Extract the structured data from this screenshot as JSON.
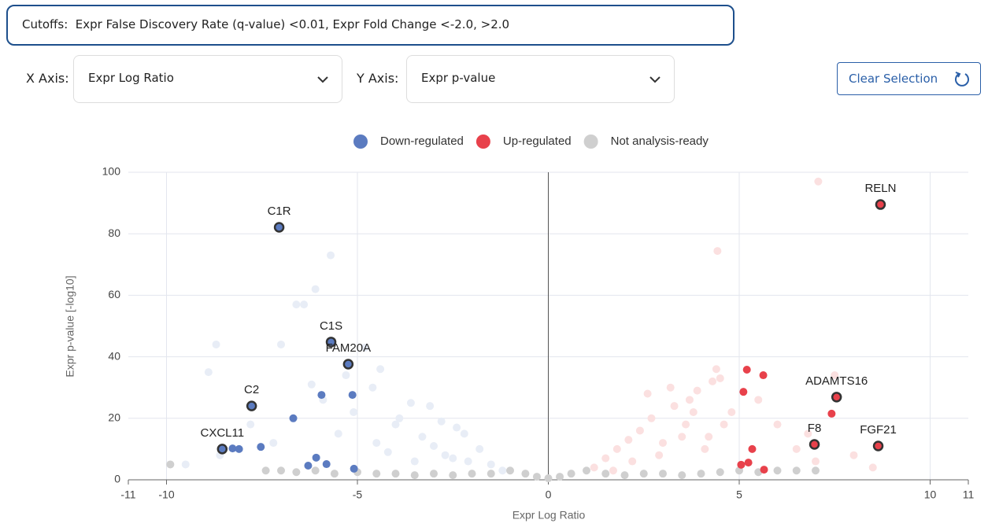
{
  "cutoffs": {
    "label": "Cutoffs:",
    "text": "Expr False Discovery Rate (q-value) <0.01, Expr Fold Change <-2.0, >2.0"
  },
  "controls": {
    "x_axis_label": "X Axis:",
    "x_axis_value": "Expr Log Ratio",
    "y_axis_label": "Y Axis:",
    "y_axis_value": "Expr p-value",
    "clear_button": "Clear Selection"
  },
  "chart_data": {
    "type": "scatter",
    "xlabel": "Expr Log Ratio",
    "ylabel": "Expr p-value [-log10]",
    "xlim": [
      -11,
      11
    ],
    "xticks": [
      -11,
      -10,
      -5,
      0,
      5,
      10,
      11
    ],
    "ylim": [
      0,
      100
    ],
    "yticks": [
      0,
      20,
      40,
      60,
      80,
      100
    ],
    "grid": true,
    "series": [
      {
        "name": "Down-regulated",
        "color": "#5b7bc0",
        "x": [
          -5.94,
          -5.13,
          -6.68,
          -7.53,
          -8.27,
          -8.1,
          -6.08,
          -6.29,
          -5.81,
          -5.09
        ],
        "values": [
          27.6,
          27.6,
          20,
          10.7,
          10.2,
          10,
          7.2,
          4.6,
          5.1,
          3.6
        ]
      },
      {
        "name": "Up-regulated",
        "color": "#e8414b",
        "x": [
          5.2,
          5.63,
          5.11,
          7.42,
          5.34,
          5.24,
          5.05,
          5.65
        ],
        "values": [
          35.8,
          34,
          28.6,
          21.5,
          10,
          5.6,
          4.9,
          3.3
        ]
      },
      {
        "name": "Not analysis-ready",
        "color": "#cfcfcf",
        "x": [
          -9.9,
          -7.4,
          -7.0,
          -6.6,
          -6.1,
          -5.6,
          -5.0,
          -4.5,
          -4.0,
          -3.5,
          -3.0,
          -2.5,
          -2.0,
          -1.5,
          -1.0,
          -0.6,
          -0.3,
          0,
          0.3,
          0.6,
          1.0,
          1.5,
          2.0,
          2.5,
          3.0,
          3.5,
          4.0,
          4.5,
          5.0,
          5.5,
          6.0,
          6.5,
          7.0
        ],
        "values": [
          5,
          3,
          3,
          2.5,
          3,
          2,
          2.5,
          2,
          2,
          1.5,
          2,
          1.5,
          2,
          2,
          3,
          2,
          1,
          0.5,
          1,
          2,
          3,
          2,
          1.5,
          2,
          2,
          1.5,
          2,
          2.5,
          3,
          2.5,
          3,
          3,
          3
        ]
      },
      {
        "color": "#e8edf6",
        "x": [
          -9.5,
          -8.9,
          -8.6,
          -7.8,
          -7.2,
          -6.6,
          -6.2,
          -5.9,
          -5.5,
          -5.1,
          -4.8,
          -4.5,
          -4.2,
          -3.9,
          -3.6,
          -3.3,
          -3.0,
          -2.7,
          -2.4,
          -2.1,
          -1.8,
          -1.5,
          -1.2,
          -4.6,
          -4.0,
          -3.5,
          -3.1,
          -2.8,
          -2.5,
          -2.2,
          -6.4,
          -7.0,
          -5.7,
          -6.1,
          -5.3,
          -8.7,
          -4.4
        ],
        "values": [
          5,
          35,
          8,
          18,
          12,
          57,
          31,
          26,
          15,
          22,
          43,
          12,
          9,
          20,
          25,
          14,
          11,
          8,
          17,
          6,
          10,
          5,
          3,
          30,
          18,
          6,
          24,
          19,
          7,
          15,
          57,
          44,
          73,
          62,
          34,
          44,
          36
        ]
      },
      {
        "color": "#fbe0e0",
        "x": [
          1.2,
          1.5,
          1.8,
          2.1,
          2.4,
          2.7,
          3.0,
          3.3,
          3.6,
          3.9,
          4.2,
          4.5,
          4.8,
          5.5,
          6.0,
          6.5,
          7.0,
          7.5,
          8.0,
          8.5,
          2.6,
          3.2,
          3.8,
          4.4,
          2.9,
          3.5,
          4.1,
          4.6,
          7.07,
          4.43,
          4.3,
          3.7,
          2.2,
          1.7,
          6.8
        ],
        "values": [
          4,
          7,
          10,
          13,
          16,
          20,
          12,
          24,
          18,
          29,
          14,
          33,
          22,
          26,
          18,
          10,
          6,
          34,
          8,
          4,
          28,
          30,
          22,
          36,
          8,
          14,
          10,
          18,
          97,
          74.4,
          32,
          26,
          6,
          3,
          15
        ]
      }
    ],
    "annotations": [
      {
        "text": "C1R",
        "x": -7.05,
        "y": 82.1,
        "color": "#5b7bc0"
      },
      {
        "text": "C1S",
        "x": -5.69,
        "y": 44.8,
        "color": "#5b7bc0"
      },
      {
        "text": "FAM20A",
        "x": -5.24,
        "y": 37.6,
        "color": "#5b7bc0"
      },
      {
        "text": "C2",
        "x": -7.77,
        "y": 24,
        "color": "#5b7bc0"
      },
      {
        "text": "CXCL11",
        "x": -8.54,
        "y": 10,
        "color": "#5b7bc0"
      },
      {
        "text": "RELN",
        "x": 8.7,
        "y": 89.5,
        "color": "#e8414b"
      },
      {
        "text": "ADAMTS16",
        "x": 7.55,
        "y": 26.9,
        "color": "#e8414b"
      },
      {
        "text": "F8",
        "x": 6.97,
        "y": 11.5,
        "color": "#e8414b"
      },
      {
        "text": "FGF21",
        "x": 8.64,
        "y": 11,
        "color": "#e8414b"
      }
    ]
  }
}
